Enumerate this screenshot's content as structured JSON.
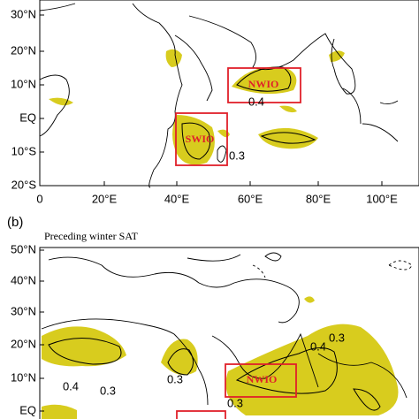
{
  "panels": [
    {
      "y_ticks": [
        "30°N",
        "20°N",
        "10°N",
        "EQ",
        "10°S",
        "20°S"
      ],
      "x_ticks": [
        "0",
        "20°E",
        "40°E",
        "60°E",
        "80°E",
        "100°E"
      ],
      "regions": [
        "NWIO",
        "SWIO"
      ],
      "contour_labels": [
        "0.4",
        "0.3"
      ]
    },
    {
      "label": "(b)",
      "title": "Preceding winter SAT",
      "y_ticks": [
        "50°N",
        "40°N",
        "30°N",
        "20°N",
        "10°N",
        "EQ"
      ],
      "regions": [
        "NWIO"
      ],
      "contour_labels": [
        "0.4",
        "0.3",
        "0.4",
        "0.3",
        "0.3",
        "0.3"
      ]
    }
  ]
}
